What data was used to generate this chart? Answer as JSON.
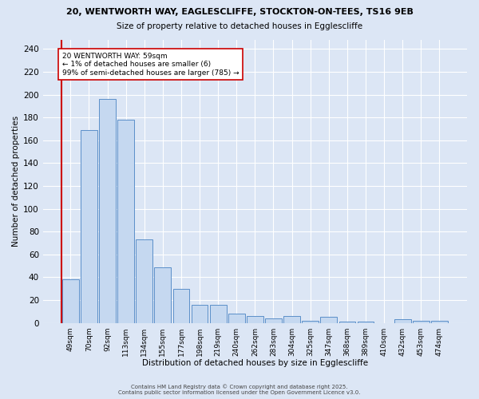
{
  "title1": "20, WENTWORTH WAY, EAGLESCLIFFE, STOCKTON-ON-TEES, TS16 9EB",
  "title2": "Size of property relative to detached houses in Egglescliffe",
  "xlabel": "Distribution of detached houses by size in Egglescliffe",
  "ylabel": "Number of detached properties",
  "bar_labels": [
    "49sqm",
    "70sqm",
    "92sqm",
    "113sqm",
    "134sqm",
    "155sqm",
    "177sqm",
    "198sqm",
    "219sqm",
    "240sqm",
    "262sqm",
    "283sqm",
    "304sqm",
    "325sqm",
    "347sqm",
    "368sqm",
    "389sqm",
    "410sqm",
    "432sqm",
    "453sqm",
    "474sqm"
  ],
  "bar_values": [
    38,
    169,
    196,
    178,
    73,
    49,
    30,
    16,
    16,
    8,
    6,
    4,
    6,
    2,
    5,
    1,
    1,
    0,
    3,
    2,
    2
  ],
  "bar_color": "#c5d8f0",
  "bar_edge_color": "#5b8fc9",
  "bg_color": "#dce6f5",
  "grid_color": "#ffffff",
  "vline_color": "#cc0000",
  "annotation_text": "20 WENTWORTH WAY: 59sqm\n← 1% of detached houses are smaller (6)\n99% of semi-detached houses are larger (785) →",
  "annotation_box_color": "#ffffff",
  "annotation_box_edge": "#cc0000",
  "ylim": [
    0,
    248
  ],
  "yticks": [
    0,
    20,
    40,
    60,
    80,
    100,
    120,
    140,
    160,
    180,
    200,
    220,
    240
  ],
  "footer1": "Contains HM Land Registry data © Crown copyright and database right 2025.",
  "footer2": "Contains public sector information licensed under the Open Government Licence v3.0."
}
